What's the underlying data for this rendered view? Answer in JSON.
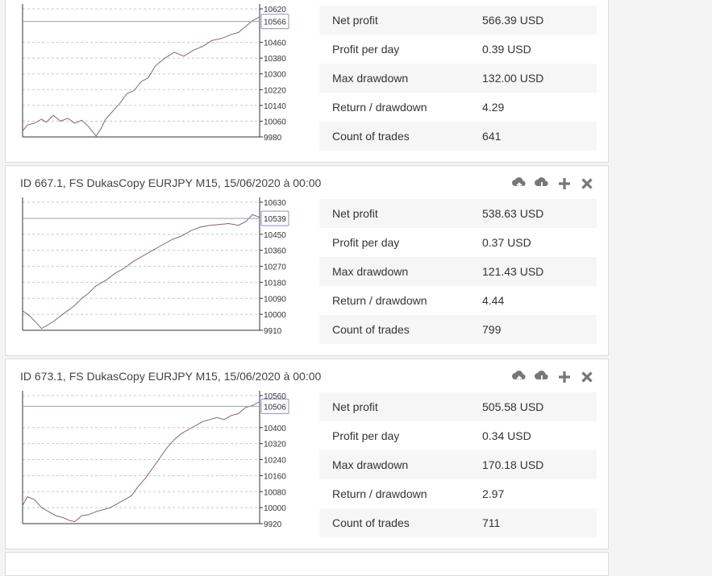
{
  "cards": [
    {
      "title": "",
      "stats": [
        {
          "label": "Net profit",
          "value": "566.39 USD"
        },
        {
          "label": "Profit per day",
          "value": "0.39 USD"
        },
        {
          "label": "Max drawdown",
          "value": "132.00 USD"
        },
        {
          "label": "Return / drawdown",
          "value": "4.29"
        },
        {
          "label": "Count of trades",
          "value": "641"
        }
      ],
      "chart_data": {
        "type": "line",
        "yticks": [
          10620,
          10460,
          10380,
          10300,
          10220,
          10140,
          10060,
          9980
        ],
        "ylim": [
          9980,
          10630
        ],
        "current_value": "10566",
        "grid": true,
        "series": [
          {
            "points": [
              [
                0,
                10010
              ],
              [
                0.02,
                10040
              ],
              [
                0.05,
                10050
              ],
              [
                0.08,
                10070
              ],
              [
                0.1,
                10055
              ],
              [
                0.13,
                10090
              ],
              [
                0.16,
                10060
              ],
              [
                0.19,
                10075
              ],
              [
                0.22,
                10050
              ],
              [
                0.25,
                10065
              ],
              [
                0.28,
                10030
              ],
              [
                0.3,
                10000
              ],
              [
                0.31,
                9985
              ],
              [
                0.33,
                10020
              ],
              [
                0.35,
                10070
              ],
              [
                0.38,
                10110
              ],
              [
                0.41,
                10150
              ],
              [
                0.44,
                10200
              ],
              [
                0.47,
                10215
              ],
              [
                0.5,
                10260
              ],
              [
                0.53,
                10280
              ],
              [
                0.56,
                10340
              ],
              [
                0.6,
                10380
              ],
              [
                0.64,
                10410
              ],
              [
                0.68,
                10390
              ],
              [
                0.72,
                10420
              ],
              [
                0.76,
                10440
              ],
              [
                0.8,
                10470
              ],
              [
                0.84,
                10480
              ],
              [
                0.88,
                10500
              ],
              [
                0.91,
                10510
              ],
              [
                0.94,
                10540
              ],
              [
                0.97,
                10570
              ],
              [
                1,
                10590
              ]
            ]
          }
        ]
      }
    },
    {
      "title": "ID 667.1, FS DukasCopy EURJPY M15, 15/06/2020 à 00:00",
      "stats": [
        {
          "label": "Net profit",
          "value": "538.63 USD"
        },
        {
          "label": "Profit per day",
          "value": "0.37 USD"
        },
        {
          "label": "Max drawdown",
          "value": "121.43 USD"
        },
        {
          "label": "Return / drawdown",
          "value": "4.44"
        },
        {
          "label": "Count of trades",
          "value": "799"
        }
      ],
      "chart_data": {
        "type": "line",
        "yticks": [
          10630,
          10450,
          10360,
          10270,
          10180,
          10090,
          10000,
          9910
        ],
        "ylim": [
          9910,
          10630
        ],
        "current_value": "10539",
        "grid": true,
        "series": [
          {
            "points": [
              [
                0,
                10020
              ],
              [
                0.03,
                9990
              ],
              [
                0.06,
                9950
              ],
              [
                0.08,
                9920
              ],
              [
                0.1,
                9935
              ],
              [
                0.13,
                9960
              ],
              [
                0.16,
                9990
              ],
              [
                0.19,
                10020
              ],
              [
                0.22,
                10050
              ],
              [
                0.25,
                10090
              ],
              [
                0.28,
                10120
              ],
              [
                0.31,
                10160
              ],
              [
                0.35,
                10190
              ],
              [
                0.39,
                10230
              ],
              [
                0.43,
                10260
              ],
              [
                0.47,
                10300
              ],
              [
                0.51,
                10330
              ],
              [
                0.55,
                10360
              ],
              [
                0.59,
                10390
              ],
              [
                0.63,
                10420
              ],
              [
                0.67,
                10440
              ],
              [
                0.71,
                10470
              ],
              [
                0.75,
                10490
              ],
              [
                0.79,
                10500
              ],
              [
                0.83,
                10505
              ],
              [
                0.87,
                10510
              ],
              [
                0.91,
                10500
              ],
              [
                0.94,
                10520
              ],
              [
                0.97,
                10560
              ],
              [
                1,
                10545
              ]
            ]
          }
        ]
      }
    },
    {
      "title": "ID 673.1, FS DukasCopy EURJPY M15, 15/06/2020 à 00:00",
      "stats": [
        {
          "label": "Net profit",
          "value": "505.58 USD"
        },
        {
          "label": "Profit per day",
          "value": "0.34 USD"
        },
        {
          "label": "Max drawdown",
          "value": "170.18 USD"
        },
        {
          "label": "Return / drawdown",
          "value": "2.97"
        },
        {
          "label": "Count of trades",
          "value": "711"
        }
      ],
      "chart_data": {
        "type": "line",
        "yticks": [
          10560,
          10400,
          10320,
          10240,
          10160,
          10080,
          10000,
          9920
        ],
        "ylim": [
          9920,
          10560
        ],
        "current_value": "10506",
        "grid": true,
        "series": [
          {
            "points": [
              [
                0,
                10010
              ],
              [
                0.02,
                10055
              ],
              [
                0.05,
                10040
              ],
              [
                0.08,
                10000
              ],
              [
                0.11,
                9980
              ],
              [
                0.14,
                9960
              ],
              [
                0.17,
                9950
              ],
              [
                0.2,
                9935
              ],
              [
                0.22,
                9930
              ],
              [
                0.25,
                9960
              ],
              [
                0.28,
                9965
              ],
              [
                0.31,
                9980
              ],
              [
                0.34,
                9990
              ],
              [
                0.37,
                10000
              ],
              [
                0.4,
                10020
              ],
              [
                0.43,
                10040
              ],
              [
                0.46,
                10060
              ],
              [
                0.49,
                10110
              ],
              [
                0.52,
                10150
              ],
              [
                0.55,
                10200
              ],
              [
                0.58,
                10250
              ],
              [
                0.61,
                10300
              ],
              [
                0.64,
                10340
              ],
              [
                0.67,
                10370
              ],
              [
                0.7,
                10390
              ],
              [
                0.73,
                10410
              ],
              [
                0.76,
                10430
              ],
              [
                0.79,
                10440
              ],
              [
                0.82,
                10450
              ],
              [
                0.85,
                10440
              ],
              [
                0.88,
                10460
              ],
              [
                0.91,
                10470
              ],
              [
                0.94,
                10500
              ],
              [
                0.97,
                10510
              ],
              [
                1,
                10530
              ]
            ]
          }
        ]
      }
    }
  ],
  "icons": [
    "cloud-upload-icon",
    "cloud-download-icon",
    "plus-icon",
    "close-icon"
  ]
}
